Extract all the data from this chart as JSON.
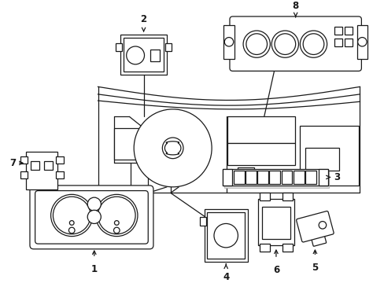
{
  "bg_color": "#ffffff",
  "line_color": "#1a1a1a",
  "lw": 0.9,
  "figsize": [
    4.89,
    3.6
  ],
  "dpi": 100
}
